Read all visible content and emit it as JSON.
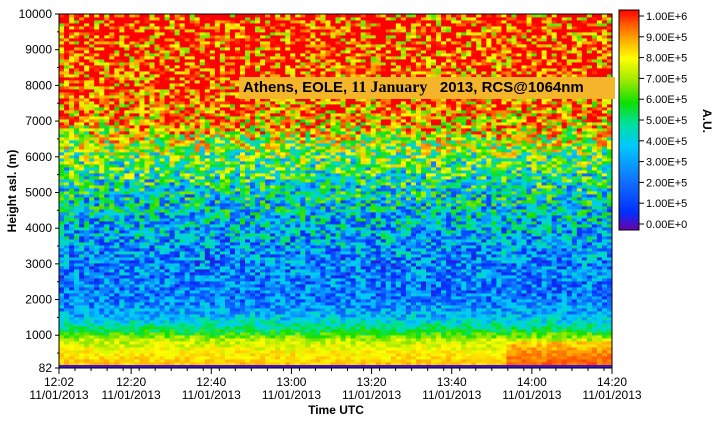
{
  "chart_data": {
    "type": "heatmap",
    "title_parts": [
      "Athens, EOLE,",
      "11 January",
      "2013, RCS@1064nm"
    ],
    "xlabel": "Time UTC",
    "ylabel": "Height asl. (m)",
    "colorbar_label": "A.U.",
    "x_ticks": [
      {
        "time": "12:02",
        "date": "11/01/2013"
      },
      {
        "time": "12:20",
        "date": "11/01/2013"
      },
      {
        "time": "12:40",
        "date": "11/01/2013"
      },
      {
        "time": "13:00",
        "date": "11/01/2013"
      },
      {
        "time": "13:20",
        "date": "11/01/2013"
      },
      {
        "time": "13:40",
        "date": "11/01/2013"
      },
      {
        "time": "14:00",
        "date": "11/01/2013"
      },
      {
        "time": "14:20",
        "date": "11/01/2013"
      }
    ],
    "x_tick_minutes": [
      0,
      18,
      38,
      58,
      78,
      98,
      118,
      138
    ],
    "y_ticks": [
      "10000",
      "9000",
      "8000",
      "7000",
      "6000",
      "5000",
      "4000",
      "3000",
      "2000",
      "1000",
      "82"
    ],
    "y_tick_values": [
      10000,
      9000,
      8000,
      7000,
      6000,
      5000,
      4000,
      3000,
      2000,
      1000,
      82
    ],
    "ylim": [
      82,
      10000
    ],
    "colorbar_ticks": [
      "1.00E+6",
      "9.00E+5",
      "8.00E+5",
      "7.00E+5",
      "6.00E+5",
      "5.00E+5",
      "4.00E+5",
      "3.00E+5",
      "2.00E+5",
      "1.00E+5",
      "0.00E+0"
    ],
    "colorbar_values": [
      1000000,
      900000,
      800000,
      700000,
      600000,
      500000,
      400000,
      300000,
      200000,
      100000,
      0
    ],
    "colorbar_range": [
      0,
      1000000
    ],
    "height_profile": [
      {
        "height": 82,
        "value": 50000
      },
      {
        "height": 150,
        "value": 780000
      },
      {
        "height": 500,
        "value": 720000
      },
      {
        "height": 900,
        "value": 620000
      },
      {
        "height": 1150,
        "value": 450000
      },
      {
        "height": 1500,
        "value": 300000
      },
      {
        "height": 2000,
        "value": 200000
      },
      {
        "height": 3000,
        "value": 220000
      },
      {
        "height": 4000,
        "value": 290000
      },
      {
        "height": 5000,
        "value": 380000
      },
      {
        "height": 6000,
        "value": 520000
      },
      {
        "height": 7000,
        "value": 800000
      },
      {
        "height": 8000,
        "value": 930000
      },
      {
        "height": 10000,
        "value": 1000000
      }
    ],
    "colormap": [
      "#6a00a8",
      "#0030ff",
      "#1070ff",
      "#00c8ff",
      "#00e0a0",
      "#10e000",
      "#a0e800",
      "#ffff00",
      "#ffb000",
      "#ff6000",
      "#ff0000"
    ]
  }
}
